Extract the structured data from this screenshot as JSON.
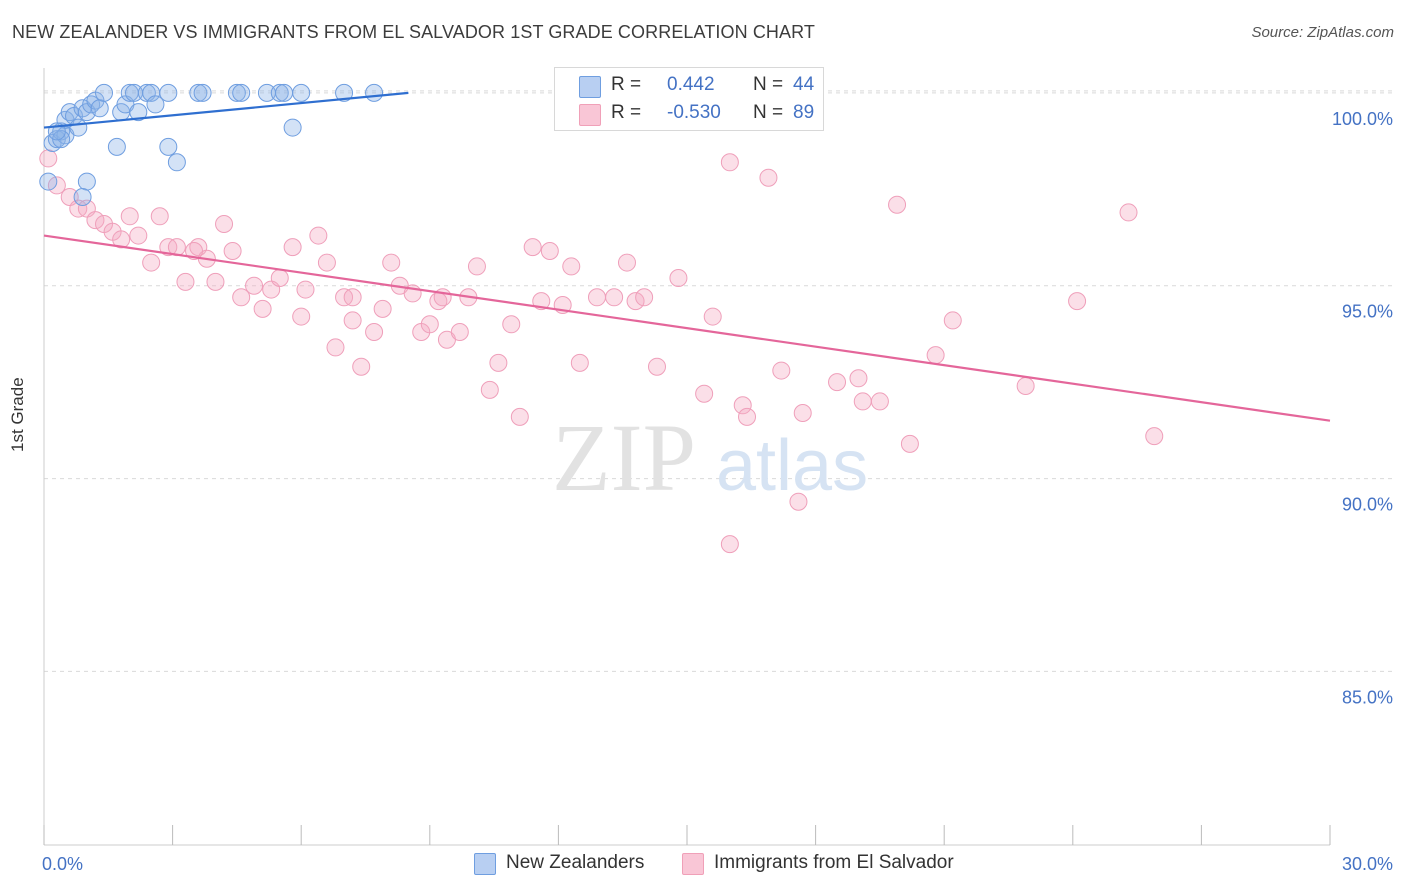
{
  "title": "NEW ZEALANDER VS IMMIGRANTS FROM EL SALVADOR 1ST GRADE CORRELATION CHART",
  "source": "Source: ZipAtlas.com",
  "watermark": {
    "zip": "ZIP",
    "atlas": "atlas"
  },
  "legend": {
    "r_label": "R =",
    "n_label": "N =",
    "series": [
      {
        "name": "New Zealanders",
        "r": "0.442",
        "n": "44"
      },
      {
        "name": "Immigrants from El Salvador",
        "r": "-0.530",
        "n": "89"
      }
    ]
  },
  "chart_data": {
    "type": "scatter",
    "title": "NEW ZEALANDER VS IMMIGRANTS FROM EL SALVADOR 1ST GRADE CORRELATION CHART",
    "xlabel": "",
    "ylabel": "1st Grade",
    "xlim": [
      0,
      30
    ],
    "ylim": [
      80.5,
      100.8
    ],
    "x_tick_labels": [
      "0.0%",
      "30.0%"
    ],
    "y_ticks": [
      100,
      95,
      90,
      85
    ],
    "y_tick_labels": [
      "100.0%",
      "95.0%",
      "90.0%",
      "85.0%"
    ],
    "grid": "horizontal dashed",
    "colors": {
      "New Zealanders": "#6f9ee0",
      "Immigrants from El Salvador": "#f0a0b8",
      "nz_line": "#2f6fd0",
      "sv_line": "#e4669a"
    },
    "series": [
      {
        "name": "New Zealanders",
        "trend": {
          "x": [
            0.0,
            8.5
          ],
          "y": [
            99.1,
            100.0
          ]
        },
        "points": [
          [
            0.1,
            97.7
          ],
          [
            0.2,
            98.7
          ],
          [
            0.3,
            98.8
          ],
          [
            0.4,
            99.0
          ],
          [
            0.5,
            98.9
          ],
          [
            0.5,
            99.3
          ],
          [
            0.6,
            99.5
          ],
          [
            0.7,
            99.4
          ],
          [
            0.8,
            99.1
          ],
          [
            0.9,
            99.6
          ],
          [
            1.0,
            99.5
          ],
          [
            1.1,
            99.7
          ],
          [
            1.2,
            99.8
          ],
          [
            1.3,
            99.6
          ],
          [
            1.4,
            100.0
          ],
          [
            1.8,
            99.5
          ],
          [
            1.9,
            99.7
          ],
          [
            2.0,
            100.0
          ],
          [
            2.1,
            100.0
          ],
          [
            2.2,
            99.5
          ],
          [
            2.4,
            100.0
          ],
          [
            2.5,
            100.0
          ],
          [
            2.6,
            99.7
          ],
          [
            2.9,
            100.0
          ],
          [
            3.6,
            100.0
          ],
          [
            3.7,
            100.0
          ],
          [
            4.5,
            100.0
          ],
          [
            4.6,
            100.0
          ],
          [
            5.2,
            100.0
          ],
          [
            5.5,
            100.0
          ],
          [
            5.6,
            100.0
          ],
          [
            6.0,
            100.0
          ],
          [
            7.0,
            100.0
          ],
          [
            7.7,
            100.0
          ],
          [
            1.7,
            98.6
          ],
          [
            2.9,
            98.6
          ],
          [
            3.1,
            98.2
          ],
          [
            5.8,
            99.1
          ],
          [
            1.0,
            97.7
          ],
          [
            0.9,
            97.3
          ],
          [
            0.4,
            98.8
          ],
          [
            0.3,
            99.0
          ],
          [
            12.4,
            100.0
          ],
          [
            12.5,
            100.0
          ]
        ]
      },
      {
        "name": "Immigrants from El Salvador",
        "trend": {
          "x": [
            0.0,
            30.0
          ],
          "y": [
            96.3,
            91.5
          ]
        },
        "points": [
          [
            0.1,
            98.3
          ],
          [
            0.3,
            97.6
          ],
          [
            0.6,
            97.3
          ],
          [
            0.8,
            97.0
          ],
          [
            1.0,
            97.0
          ],
          [
            1.2,
            96.7
          ],
          [
            1.4,
            96.6
          ],
          [
            1.6,
            96.4
          ],
          [
            1.8,
            96.2
          ],
          [
            2.0,
            96.8
          ],
          [
            2.2,
            96.3
          ],
          [
            2.5,
            95.6
          ],
          [
            2.7,
            96.8
          ],
          [
            2.9,
            96.0
          ],
          [
            3.1,
            96.0
          ],
          [
            3.3,
            95.1
          ],
          [
            3.6,
            96.0
          ],
          [
            3.8,
            95.7
          ],
          [
            4.0,
            95.1
          ],
          [
            4.2,
            96.6
          ],
          [
            4.4,
            95.9
          ],
          [
            4.6,
            94.7
          ],
          [
            4.9,
            95.0
          ],
          [
            5.1,
            94.4
          ],
          [
            5.3,
            94.9
          ],
          [
            5.5,
            95.2
          ],
          [
            5.8,
            96.0
          ],
          [
            6.0,
            94.2
          ],
          [
            6.1,
            94.9
          ],
          [
            6.4,
            96.3
          ],
          [
            6.6,
            95.6
          ],
          [
            6.8,
            93.4
          ],
          [
            7.0,
            94.7
          ],
          [
            7.2,
            94.1
          ],
          [
            7.4,
            92.9
          ],
          [
            7.7,
            93.8
          ],
          [
            7.9,
            94.4
          ],
          [
            8.1,
            95.6
          ],
          [
            8.3,
            95.0
          ],
          [
            8.6,
            94.8
          ],
          [
            8.8,
            93.8
          ],
          [
            9.0,
            94.0
          ],
          [
            9.2,
            94.6
          ],
          [
            9.4,
            93.6
          ],
          [
            9.7,
            93.8
          ],
          [
            9.9,
            94.7
          ],
          [
            10.1,
            95.5
          ],
          [
            10.4,
            92.3
          ],
          [
            10.6,
            93.0
          ],
          [
            10.9,
            94.0
          ],
          [
            11.1,
            91.6
          ],
          [
            11.4,
            96.0
          ],
          [
            11.6,
            94.6
          ],
          [
            11.8,
            95.9
          ],
          [
            12.1,
            94.5
          ],
          [
            12.3,
            95.5
          ],
          [
            12.5,
            93.0
          ],
          [
            12.9,
            94.7
          ],
          [
            13.3,
            94.7
          ],
          [
            13.6,
            95.6
          ],
          [
            13.8,
            94.6
          ],
          [
            14.3,
            92.9
          ],
          [
            14.8,
            95.2
          ],
          [
            15.4,
            92.2
          ],
          [
            15.6,
            94.2
          ],
          [
            16.0,
            98.2
          ],
          [
            16.3,
            91.9
          ],
          [
            16.4,
            91.6
          ],
          [
            16.9,
            97.8
          ],
          [
            17.2,
            92.8
          ],
          [
            17.6,
            89.4
          ],
          [
            17.7,
            91.7
          ],
          [
            18.5,
            92.5
          ],
          [
            19.0,
            92.6
          ],
          [
            19.1,
            92.0
          ],
          [
            19.5,
            92.0
          ],
          [
            19.9,
            97.1
          ],
          [
            20.2,
            90.9
          ],
          [
            20.8,
            93.2
          ],
          [
            21.2,
            94.1
          ],
          [
            22.9,
            92.4
          ],
          [
            24.1,
            94.6
          ],
          [
            25.3,
            96.9
          ],
          [
            25.9,
            91.1
          ],
          [
            16.0,
            88.3
          ],
          [
            14.0,
            94.7
          ],
          [
            9.3,
            94.7
          ],
          [
            7.2,
            94.7
          ],
          [
            3.5,
            95.9
          ]
        ]
      }
    ]
  }
}
